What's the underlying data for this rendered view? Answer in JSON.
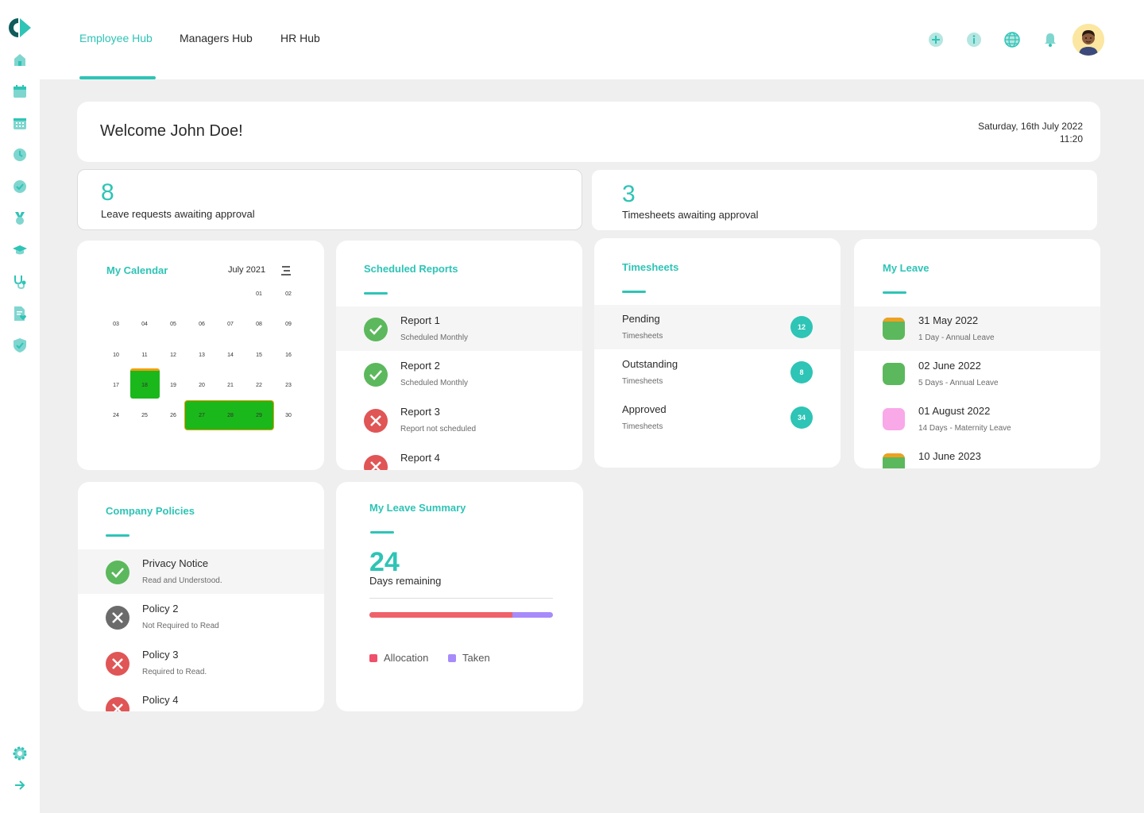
{
  "tabs": [
    {
      "label": "Employee Hub",
      "active": true
    },
    {
      "label": "Managers Hub",
      "active": false
    },
    {
      "label": "HR Hub",
      "active": false
    }
  ],
  "sidebar_icons": [
    "home-icon",
    "calendar-icon",
    "calendar-grid-icon",
    "clock-icon",
    "check-circle-icon",
    "medal-icon",
    "graduation-cap-icon",
    "stethoscope-icon",
    "document-heart-icon",
    "shield-check-icon"
  ],
  "sidebar_bottom_icons": [
    "settings-icon",
    "arrow-right-icon"
  ],
  "top_icons": [
    "plus-circle-icon",
    "info-icon",
    "globe-icon",
    "bell-icon"
  ],
  "colors": {
    "accent": "#2ec4b6",
    "success": "#5cb85c",
    "danger": "#e05555",
    "neutral": "#6b6b6b",
    "allocation": "#f0626a",
    "taken": "#a78bfa"
  },
  "welcome": {
    "title": "Welcome John Doe!",
    "date": "Saturday, 16th July 2022",
    "time": "11:20"
  },
  "stats": {
    "leave": {
      "number": "8",
      "label": "Leave requests awaiting approval"
    },
    "timesheets": {
      "number": "3",
      "label": "Timesheets awaiting approval"
    }
  },
  "calendar": {
    "title": "My Calendar",
    "month": "July 2021",
    "weeks": [
      [
        "",
        "",
        "",
        "",
        "",
        "01",
        "02"
      ],
      [
        "03",
        "04",
        "05",
        "06",
        "07",
        "08",
        "09"
      ],
      [
        "10",
        "11",
        "12",
        "13",
        "14",
        "15",
        "16"
      ],
      [
        "17",
        "18",
        "19",
        "20",
        "21",
        "22",
        "23"
      ],
      [
        "24",
        "25",
        "26",
        "27",
        "28",
        "29",
        "30"
      ]
    ],
    "highlight_single": "18",
    "highlight_range": [
      "27",
      "28",
      "29"
    ]
  },
  "scheduled_reports": {
    "title": "Scheduled Reports",
    "items": [
      {
        "name": "Report 1",
        "sub": "Scheduled Monthly",
        "status": "success"
      },
      {
        "name": "Report 2",
        "sub": "Scheduled Monthly",
        "status": "success"
      },
      {
        "name": "Report 3",
        "sub": "Report not scheduled",
        "status": "danger"
      },
      {
        "name": "Report 4",
        "sub": "",
        "status": "danger"
      }
    ]
  },
  "timesheets": {
    "title": "Timesheets",
    "items": [
      {
        "name": "Pending",
        "sub": "Timesheets",
        "count": "12"
      },
      {
        "name": "Outstanding",
        "sub": "Timesheets",
        "count": "8"
      },
      {
        "name": "Approved",
        "sub": "Timesheets",
        "count": "34"
      }
    ]
  },
  "my_leave": {
    "title": "My Leave",
    "items": [
      {
        "date": "31 May 2022",
        "sub": "1 Day - Annual Leave",
        "color": "#5cb85c",
        "top": "#f0a020"
      },
      {
        "date": "02 June 2022",
        "sub": "5 Days - Annual Leave",
        "color": "#5cb85c",
        "top": "#5cb85c"
      },
      {
        "date": "01 August 2022",
        "sub": "14 Days - Maternity Leave",
        "color": "#f9a8e8",
        "top": "#f9a8e8"
      },
      {
        "date": "10 June 2023",
        "sub": "",
        "color": "#5cb85c",
        "top": "#f0a020"
      }
    ]
  },
  "policies": {
    "title": "Company Policies",
    "items": [
      {
        "name": "Privacy Notice",
        "sub": "Read and Understood.",
        "status": "success"
      },
      {
        "name": "Policy 2",
        "sub": "Not Required to Read",
        "status": "neutral"
      },
      {
        "name": "Policy 3",
        "sub": "Required to Read.",
        "status": "danger"
      },
      {
        "name": "Policy 4",
        "sub": "",
        "status": "danger"
      }
    ]
  },
  "leave_summary": {
    "title": "My Leave Summary",
    "number": "24",
    "label": "Days remaining",
    "allocation_fraction": 0.78,
    "legend": {
      "allocation": "Allocation",
      "taken": "Taken"
    }
  }
}
